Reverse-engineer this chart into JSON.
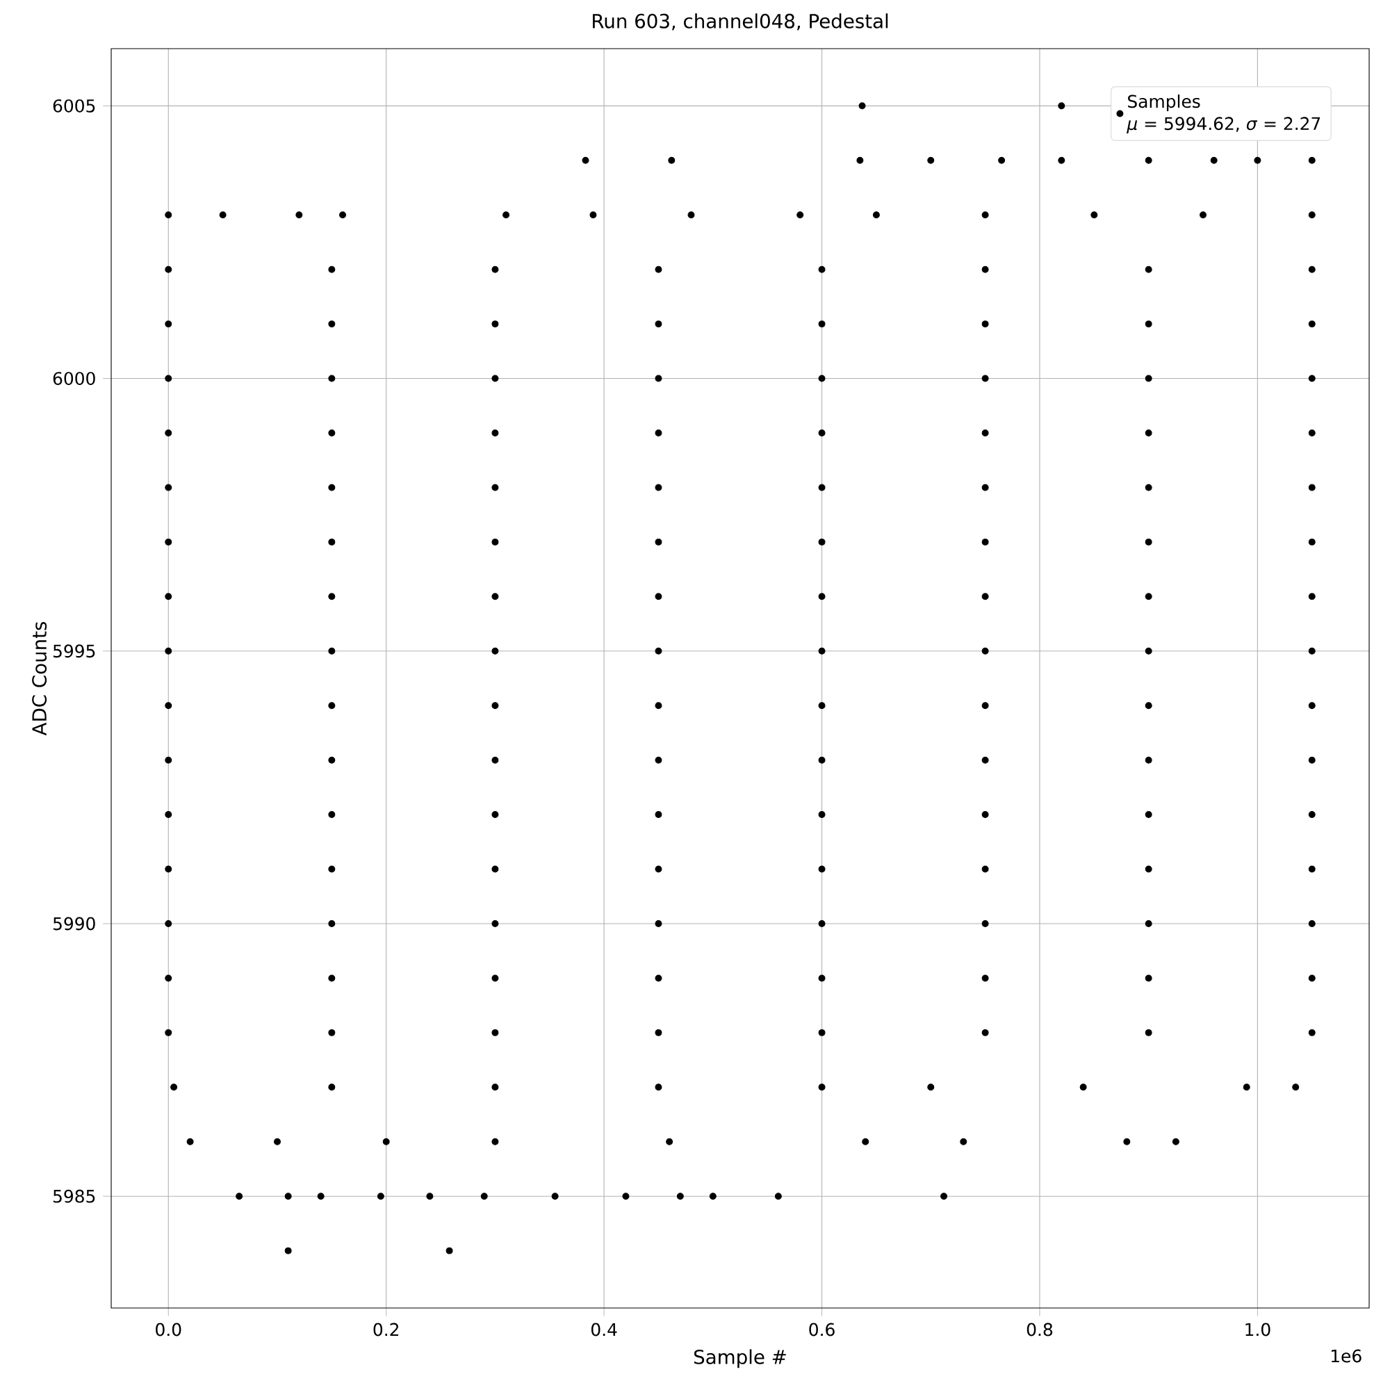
{
  "chart_data": {
    "type": "scatter",
    "title": "Run 603, channel048, Pedestal",
    "xlabel": "Sample #",
    "ylabel": "ADC Counts",
    "xlim": [
      -0.0525,
      1.1025
    ],
    "ylim": [
      5982.95,
      6006.05
    ],
    "xticks": [
      {
        "value": 0,
        "label": "0.0"
      },
      0.2,
      0.4,
      0.6,
      0.8,
      {
        "value": 1,
        "label": "1.0"
      }
    ],
    "yticks": [
      5985,
      5990,
      5995,
      6000,
      6005
    ],
    "grid": true,
    "legend": "top right",
    "marker": "circle",
    "annotations": [
      "1e6",
      "*μ* = 5994.62, *σ* = 2.27"
    ],
    "series": [
      {
        "name": "Samples",
        "color": "#000000",
        "x": [
          0,
          0.15,
          0.3,
          0.45,
          0.6,
          0.75,
          0.9,
          1.05,
          0,
          0.15,
          0.3,
          0.45,
          0.6,
          0.75,
          0.9,
          1.05,
          0,
          0.15,
          0.3,
          0.45,
          0.6,
          0.75,
          0.9,
          1.05,
          0,
          0.15,
          0.3,
          0.45,
          0.6,
          0.75,
          0.9,
          1.05,
          0,
          0.15,
          0.3,
          0.45,
          0.6,
          0.75,
          0.9,
          1.05,
          0,
          0.15,
          0.3,
          0.45,
          0.6,
          0.75,
          0.9,
          1.05,
          0,
          0.15,
          0.3,
          0.45,
          0.6,
          0.75,
          0.9,
          1.05,
          0,
          0.15,
          0.3,
          0.45,
          0.6,
          0.75,
          0.9,
          1.05,
          0,
          0.15,
          0.3,
          0.45,
          0.6,
          0.75,
          0.9,
          1.05,
          0,
          0.15,
          0.3,
          0.45,
          0.6,
          0.75,
          0.9,
          1.05,
          0,
          0.15,
          0.3,
          0.45,
          0.6,
          0.75,
          0.9,
          1.05,
          0,
          0.15,
          0.3,
          0.45,
          0.6,
          0.75,
          0.9,
          1.05,
          0,
          0.15,
          0.3,
          0.45,
          0.6,
          0.75,
          0.9,
          1.05,
          0,
          0.15,
          0.3,
          0.45,
          0.6,
          0.75,
          0.9,
          1.05,
          0,
          0.15,
          0.3,
          0.45,
          0.6,
          0.75,
          0.9,
          1.05,
          0.005,
          0.15,
          0.3,
          0.45,
          0.6,
          0.7,
          0.84,
          0.99,
          1.035,
          0.02,
          0.1,
          0.2,
          0.3,
          0.46,
          0.64,
          0.73,
          0.88,
          0.925,
          0.065,
          0.11,
          0.14,
          0.195,
          0.24,
          0.29,
          0.355,
          0.42,
          0.47,
          0.5,
          0.56,
          0.712,
          0.11,
          0.258,
          0,
          0.05,
          0.12,
          0.16,
          0.31,
          0.39,
          0.48,
          0.58,
          0.65,
          0.75,
          0.85,
          0.95,
          1.05,
          0.383,
          0.462,
          0.635,
          0.7,
          0.765,
          0.82,
          0.9,
          0.96,
          1.0,
          1.05,
          0.637,
          0.82
        ],
        "values": [
          5988,
          5988,
          5988,
          5988,
          5988,
          5988,
          5988,
          5988,
          5989,
          5989,
          5989,
          5989,
          5989,
          5989,
          5989,
          5989,
          5990,
          5990,
          5990,
          5990,
          5990,
          5990,
          5990,
          5990,
          5991,
          5991,
          5991,
          5991,
          5991,
          5991,
          5991,
          5991,
          5992,
          5992,
          5992,
          5992,
          5992,
          5992,
          5992,
          5992,
          5993,
          5993,
          5993,
          5993,
          5993,
          5993,
          5993,
          5993,
          5994,
          5994,
          5994,
          5994,
          5994,
          5994,
          5994,
          5994,
          5995,
          5995,
          5995,
          5995,
          5995,
          5995,
          5995,
          5995,
          5996,
          5996,
          5996,
          5996,
          5996,
          5996,
          5996,
          5996,
          5997,
          5997,
          5997,
          5997,
          5997,
          5997,
          5997,
          5997,
          5998,
          5998,
          5998,
          5998,
          5998,
          5998,
          5998,
          5998,
          5999,
          5999,
          5999,
          5999,
          5999,
          5999,
          5999,
          5999,
          6000,
          6000,
          6000,
          6000,
          6000,
          6000,
          6000,
          6000,
          6001,
          6001,
          6001,
          6001,
          6001,
          6001,
          6001,
          6001,
          6002,
          6002,
          6002,
          6002,
          6002,
          6002,
          6002,
          6002,
          5987,
          5987,
          5987,
          5987,
          5987,
          5987,
          5987,
          5987,
          5987,
          5986,
          5986,
          5986,
          5986,
          5986,
          5986,
          5986,
          5986,
          5986,
          5985,
          5985,
          5985,
          5985,
          5985,
          5985,
          5985,
          5985,
          5985,
          5985,
          5985,
          5985,
          5984,
          5984,
          6003,
          6003,
          6003,
          6003,
          6003,
          6003,
          6003,
          6003,
          6003,
          6003,
          6003,
          6003,
          6003,
          6004,
          6004,
          6004,
          6004,
          6004,
          6004,
          6004,
          6004,
          6004,
          6004,
          6005,
          6005
        ]
      }
    ]
  }
}
